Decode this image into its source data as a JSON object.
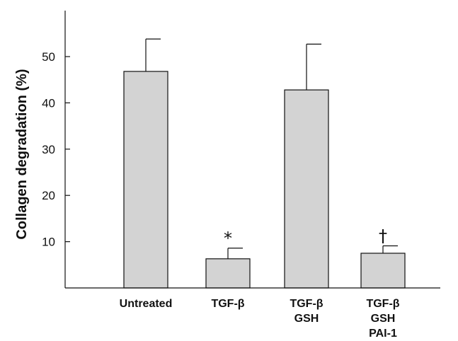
{
  "chart_data": {
    "type": "bar",
    "title": "",
    "xlabel": "",
    "ylabel": "Collagen degradation (%)",
    "ylim": [
      0,
      60
    ],
    "yticks": [
      10,
      20,
      30,
      40,
      50
    ],
    "categories": [
      [
        "Untreated"
      ],
      [
        "TGF-β"
      ],
      [
        "TGF-β",
        "GSH"
      ],
      [
        "TGF-β",
        "GSH",
        "PAI-1"
      ]
    ],
    "values": [
      46.8,
      6.3,
      42.8,
      7.5
    ],
    "error_upper": [
      7.0,
      2.3,
      9.9,
      1.6
    ],
    "annotations": [
      "",
      "*",
      "",
      "†"
    ],
    "bar_color": "#d3d3d3",
    "grid": false
  }
}
